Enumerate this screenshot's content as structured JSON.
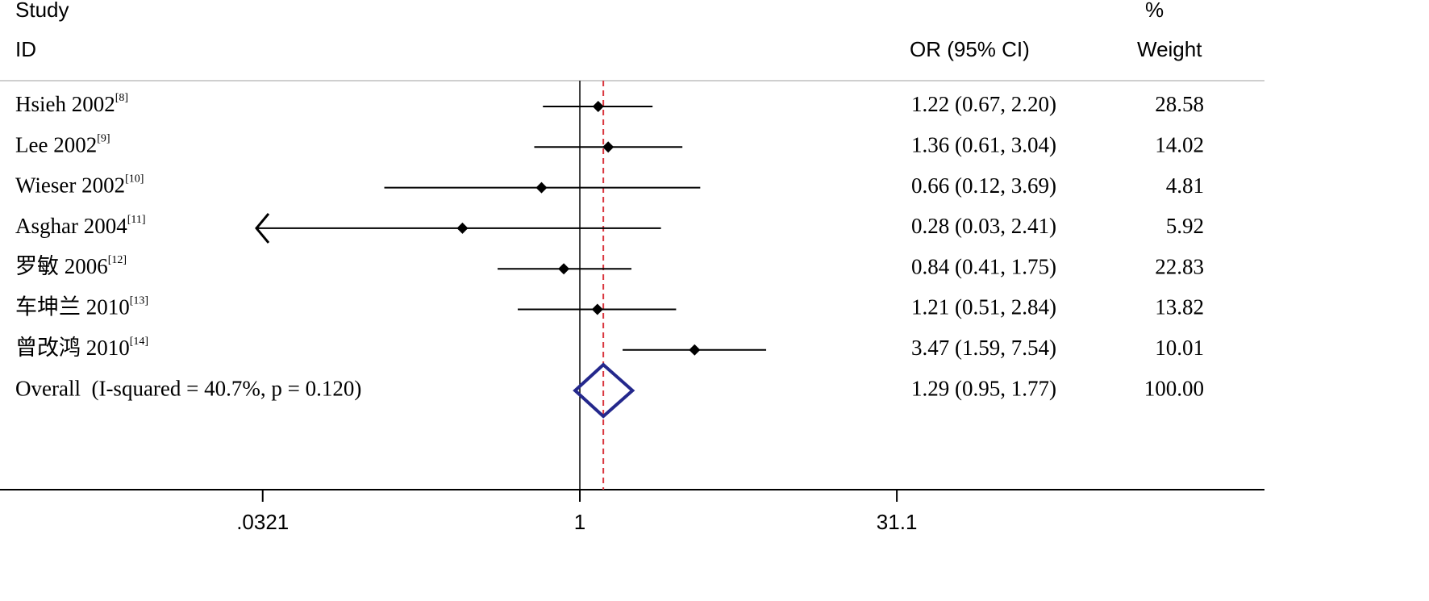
{
  "chart_data": {
    "type": "forest",
    "headers": {
      "study_top": "Study",
      "study": "ID",
      "ci": "OR (95% CI)",
      "weight_top": "%",
      "weight": "Weight"
    },
    "studies": [
      {
        "name": "Hsieh 2002",
        "ref": "[8]",
        "or": 1.22,
        "lower": 0.67,
        "upper": 2.2,
        "ci_label": "1.22 (0.67, 2.20)",
        "weight": 28.58
      },
      {
        "name": "Lee 2002",
        "ref": "[9]",
        "or": 1.36,
        "lower": 0.61,
        "upper": 3.04,
        "ci_label": "1.36 (0.61, 3.04)",
        "weight": 14.02
      },
      {
        "name": "Wieser 2002",
        "ref": "[10]",
        "or": 0.66,
        "lower": 0.12,
        "upper": 3.69,
        "ci_label": "0.66 (0.12, 3.69)",
        "weight": 4.81
      },
      {
        "name": "Asghar 2004",
        "ref": "[11]",
        "or": 0.28,
        "lower": 0.03,
        "upper": 2.41,
        "ci_label": "0.28 (0.03, 2.41)",
        "weight": 5.92
      },
      {
        "name": "罗敏 2006",
        "ref": "[12]",
        "or": 0.84,
        "lower": 0.41,
        "upper": 1.75,
        "ci_label": "0.84 (0.41, 1.75)",
        "weight": 22.83
      },
      {
        "name": "车坤兰 2010",
        "ref": "[13]",
        "or": 1.21,
        "lower": 0.51,
        "upper": 2.84,
        "ci_label": "1.21 (0.51, 2.84)",
        "weight": 13.82
      },
      {
        "name": "曾改鸿 2010",
        "ref": "[14]",
        "or": 3.47,
        "lower": 1.59,
        "upper": 7.54,
        "ci_label": "3.47 (1.59, 7.54)",
        "weight": 10.01
      }
    ],
    "overall": {
      "name": "Overall  (I-squared = 40.7%, p = 0.120)",
      "or": 1.29,
      "lower": 0.95,
      "upper": 1.77,
      "ci_label": "1.29 (0.95, 1.77)",
      "weight": 100,
      "weight_label": "100.00",
      "color": "#24288c"
    },
    "null_line": 1,
    "overall_line_color": "#d9363e",
    "log_x": true,
    "xlim": [
      0.00186,
      1675
    ],
    "xticks": [
      {
        "value": 0.0321,
        "label": ".0321"
      },
      1,
      31.1
    ]
  }
}
